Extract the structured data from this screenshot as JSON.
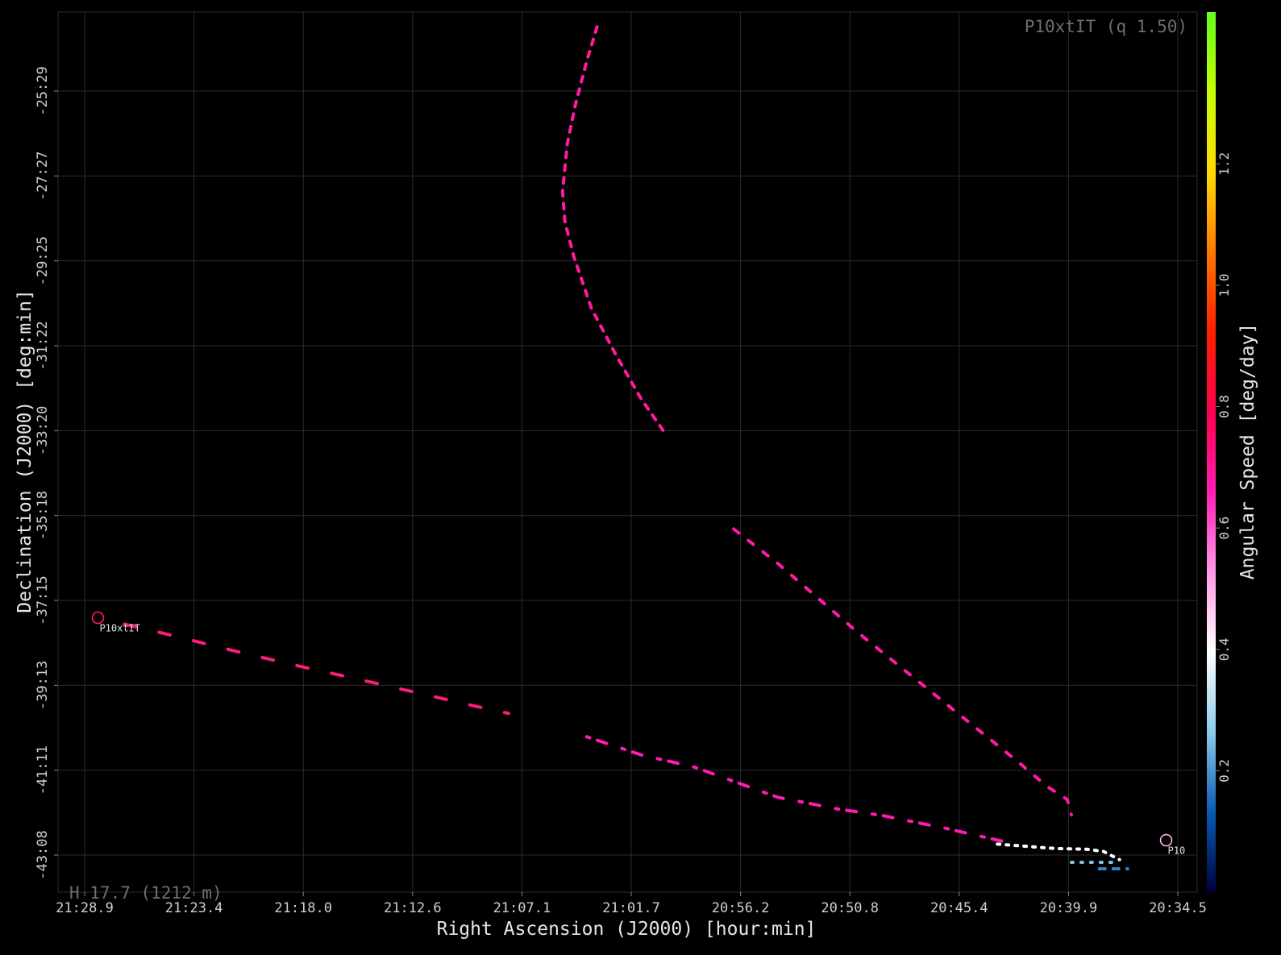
{
  "chart_data": {
    "type": "scatter",
    "title": "P10xtIT (q 1.50)",
    "footnote": "H 17.7 (1212 m)",
    "xlabel": "Right Ascension (J2000) [hour:min]",
    "ylabel": "Declination (J2000) [deg:min]",
    "x_ticks": [
      "21:28.9",
      "21:23.4",
      "21:18.0",
      "21:12.6",
      "21:07.1",
      "21:01.7",
      "20:56.2",
      "20:50.8",
      "20:45.4",
      "20:39.9",
      "20:34.5"
    ],
    "y_ticks": [
      "-25:29",
      "-27:27",
      "-29:25",
      "-31:22",
      "-33:20",
      "-35:18",
      "-37:15",
      "-39:13",
      "-41:11",
      "-43:08"
    ],
    "x_range_deg": [
      322.225,
      308.625
    ],
    "y_range_deg": [
      -23.6,
      -44.2
    ],
    "x_axis_direction": "RA decreases to the right",
    "grid": true,
    "colorbar": {
      "label": "Angular Speed [deg/day]",
      "ticks": [
        "0.2",
        "0.4",
        "0.6",
        "0.8",
        "1.0",
        "1.2"
      ],
      "range": [
        0.0,
        1.45
      ],
      "colors": [
        "#00003c",
        "#0a5ab4",
        "#8ccbeb",
        "#ffffff",
        "#ff9be6",
        "#ff1eb4",
        "#ff0050",
        "#ff1e00",
        "#ff7800",
        "#ffdc00",
        "#c8ff00",
        "#64ff1e"
      ]
    },
    "markers": [
      {
        "label": "P10xtIT",
        "ra_deg": 322.06,
        "dec_deg": -37.65,
        "color": "#ff1a55"
      },
      {
        "label": "P10",
        "ra_deg": 308.77,
        "dec_deg": -42.79,
        "color": "#ffb0e6"
      }
    ],
    "tracks": [
      {
        "color": "#ff1a9e",
        "dash": [
          7,
          9
        ],
        "points": [
          [
            315.85,
            -24.0
          ],
          [
            315.98,
            -24.8
          ],
          [
            316.12,
            -25.8
          ],
          [
            316.22,
            -26.7
          ],
          [
            316.28,
            -27.8
          ],
          [
            316.25,
            -28.5
          ],
          [
            316.14,
            -29.3
          ],
          [
            315.92,
            -30.5
          ],
          [
            315.61,
            -31.6
          ],
          [
            315.3,
            -32.6
          ],
          [
            315.0,
            -33.4
          ]
        ]
      },
      {
        "color": "#ff1a80",
        "dash": [
          14,
          30
        ],
        "points": [
          [
            321.73,
            -37.8
          ],
          [
            321.2,
            -38.03
          ],
          [
            320.4,
            -38.4
          ],
          [
            319.6,
            -38.75
          ],
          [
            318.8,
            -39.08
          ],
          [
            318.0,
            -39.42
          ],
          [
            317.3,
            -39.72
          ],
          [
            316.95,
            -39.86
          ]
        ]
      },
      {
        "color": "#ff1aa6",
        "dash": [
          8,
          15
        ],
        "points": [
          [
            314.15,
            -35.6
          ],
          [
            313.6,
            -36.4
          ],
          [
            313.1,
            -37.2
          ],
          [
            312.6,
            -38.0
          ],
          [
            312.1,
            -38.75
          ],
          [
            311.4,
            -39.8
          ],
          [
            310.6,
            -41.0
          ],
          [
            310.25,
            -41.55
          ],
          [
            310.0,
            -41.85
          ],
          [
            309.95,
            -42.2
          ]
        ]
      },
      {
        "color": "#ff1ab4",
        "dash": [
          4,
          10,
          12,
          20
        ],
        "points": [
          [
            315.98,
            -40.4
          ],
          [
            315.3,
            -40.82
          ],
          [
            314.64,
            -41.1
          ],
          [
            313.6,
            -41.8
          ],
          [
            312.85,
            -42.07
          ],
          [
            312.3,
            -42.22
          ],
          [
            311.5,
            -42.52
          ],
          [
            310.7,
            -42.86
          ]
        ]
      },
      {
        "color": "#ffffff",
        "dash": [
          3,
          8
        ],
        "points": [
          [
            310.87,
            -42.88
          ],
          [
            310.16,
            -42.98
          ],
          [
            309.75,
            -43.0
          ],
          [
            309.55,
            -43.05
          ],
          [
            309.35,
            -43.24
          ]
        ]
      },
      {
        "color": "#7fc3ea",
        "dash": [
          2,
          10
        ],
        "points": [
          [
            309.95,
            -43.3
          ],
          [
            309.35,
            -43.3
          ]
        ]
      },
      {
        "color": "#2f87d0",
        "dash": [
          2,
          3,
          2,
          10
        ],
        "points": [
          [
            309.6,
            -43.45
          ],
          [
            309.25,
            -43.45
          ]
        ]
      }
    ]
  }
}
